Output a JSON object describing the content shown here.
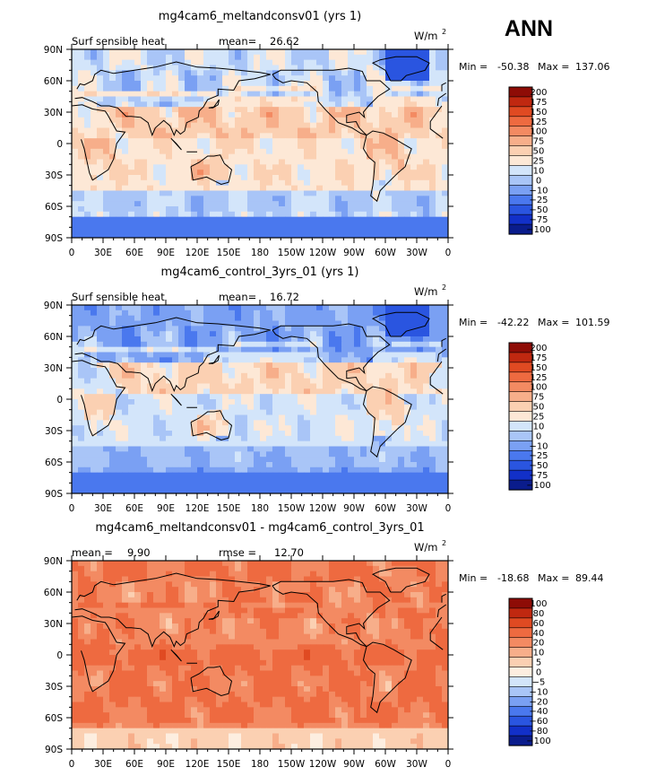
{
  "page_label": "ANN",
  "palettes": {
    "abs": [
      "#0a1c8c",
      "#1230c8",
      "#2a55e0",
      "#4a78ee",
      "#7aa0f3",
      "#a9c5f7",
      "#d3e5fa",
      "#fde8d6",
      "#fbd0b2",
      "#f7ae8a",
      "#f38a62",
      "#ee6a40",
      "#e04a22",
      "#c02810",
      "#8e0c06"
    ],
    "diff": [
      "#0a1c8c",
      "#1230c8",
      "#2a55e0",
      "#4a78ee",
      "#7aa0f3",
      "#a9c5f7",
      "#d3e5fa",
      "#fdeee0",
      "#fbd0b2",
      "#f7ae8a",
      "#f38a62",
      "#ee6a40",
      "#e04a22",
      "#c02810",
      "#8e0c06"
    ]
  },
  "chart_data": [
    {
      "type": "heatmap",
      "title": "mg4cam6_meltandconsv01 (yrs 1)",
      "left_label": "Surf sensible heat",
      "stat_label": "mean=",
      "stat_value": "26.62",
      "stat2_label": "",
      "stat2_value": "",
      "units": "W/m",
      "units_sup": "2",
      "min_label": "Min =",
      "min_value": "-50.38",
      "max_label": "Max =",
      "max_value": "137.06",
      "palette": "abs",
      "levels": [
        "200",
        "175",
        "150",
        "125",
        "100",
        "75",
        "50",
        "25",
        "10",
        "0",
        "−10",
        "−25",
        "−50",
        "−75",
        "−100"
      ],
      "field": "m",
      "xticks": [
        "0",
        "30E",
        "60E",
        "90E",
        "120E",
        "150E",
        "180",
        "150W",
        "120W",
        "90W",
        "60W",
        "30W",
        "0"
      ],
      "yticks": [
        "90N",
        "60N",
        "30N",
        "0",
        "30S",
        "60S",
        "90S"
      ]
    },
    {
      "type": "heatmap",
      "title": "mg4cam6_control_3yrs_01 (yrs 1)",
      "left_label": "Surf sensible heat",
      "stat_label": "mean=",
      "stat_value": "16.72",
      "stat2_label": "",
      "stat2_value": "",
      "units": "W/m",
      "units_sup": "2",
      "min_label": "Min =",
      "min_value": "-42.22",
      "max_label": "Max =",
      "max_value": "101.59",
      "palette": "abs",
      "levels": [
        "200",
        "175",
        "150",
        "125",
        "100",
        "75",
        "50",
        "25",
        "10",
        "0",
        "−10",
        "−25",
        "−50",
        "−75",
        "−100"
      ],
      "field": "c",
      "xticks": [
        "0",
        "30E",
        "60E",
        "90E",
        "120E",
        "150E",
        "180",
        "150W",
        "120W",
        "90W",
        "60W",
        "30W",
        "0"
      ],
      "yticks": [
        "90N",
        "60N",
        "30N",
        "0",
        "30S",
        "60S",
        "90S"
      ]
    },
    {
      "type": "heatmap",
      "title": "mg4cam6_meltandconsv01 - mg4cam6_control_3yrs_01",
      "left_label": "",
      "stat_label": "mean =",
      "stat_value": "9.90",
      "stat2_label": "rmse =",
      "stat2_value": "12.70",
      "units": "W/m",
      "units_sup": "2",
      "min_label": "Min =",
      "min_value": "-18.68",
      "max_label": "Max =",
      "max_value": "89.44",
      "palette": "diff",
      "levels": [
        "100",
        "80",
        "60",
        "40",
        "20",
        "10",
        "5",
        "0",
        "−5",
        "−10",
        "−20",
        "−40",
        "−60",
        "−80",
        "−100"
      ],
      "field": "d",
      "xticks": [
        "0",
        "30E",
        "60E",
        "90E",
        "120E",
        "150E",
        "180",
        "150W",
        "120W",
        "90W",
        "60W",
        "30W",
        "0"
      ],
      "yticks": [
        "90N",
        "60N",
        "30N",
        "0",
        "30S",
        "60S",
        "90S"
      ]
    }
  ]
}
